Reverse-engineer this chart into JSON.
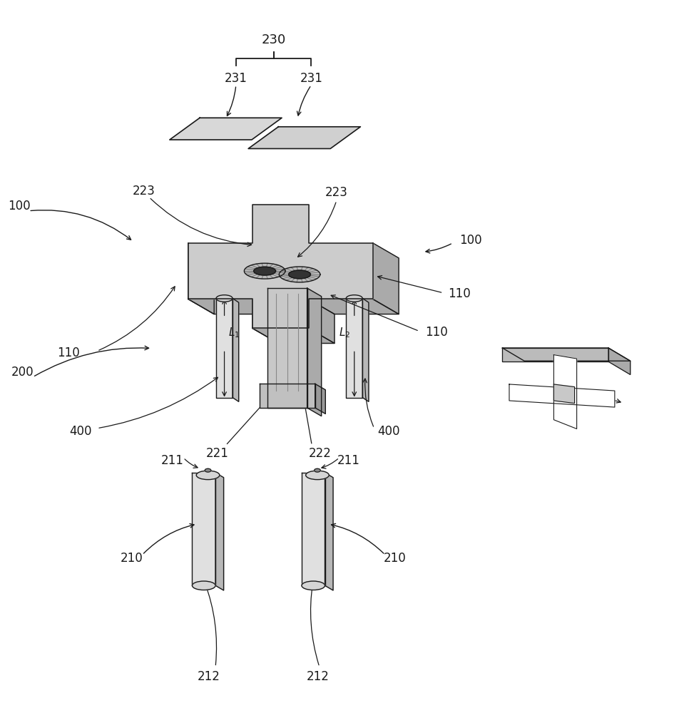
{
  "bg_color": "#ffffff",
  "line_color": "#1a1a1a",
  "fig_width": 9.59,
  "fig_height": 10.0
}
